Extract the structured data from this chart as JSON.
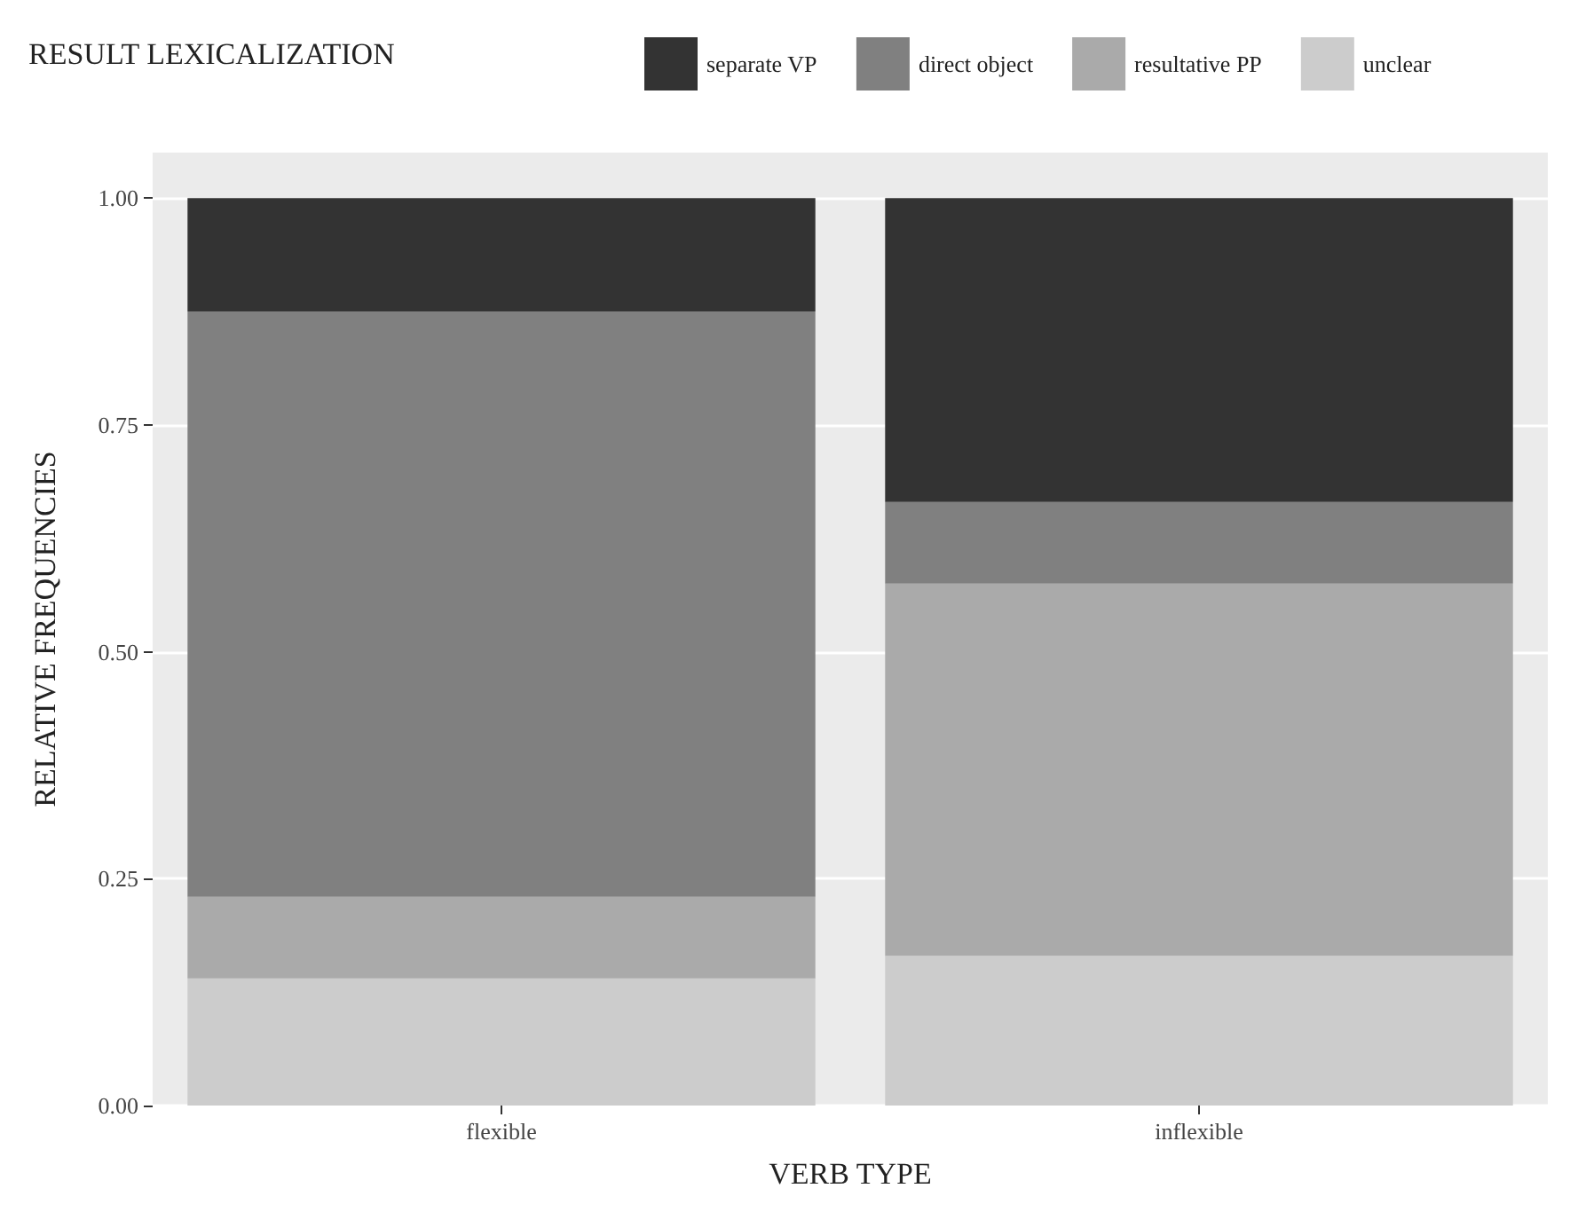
{
  "chart_data": {
    "type": "bar",
    "stacked": true,
    "xlabel": "VERB TYPE",
    "ylabel": "RELATIVE FREQUENCIES",
    "legend_title": "RESULT LEXICALIZATION",
    "legend": "top",
    "categories": [
      "flexible",
      "inflexible"
    ],
    "series": [
      {
        "name": "unclear",
        "color": "#cccccc",
        "values": [
          0.14,
          0.165
        ]
      },
      {
        "name": "resultative PP",
        "color": "#aaaaaa",
        "values": [
          0.09,
          0.41
        ]
      },
      {
        "name": "direct object",
        "color": "#808080",
        "values": [
          0.645,
          0.09
        ]
      },
      {
        "name": "separate VP",
        "color": "#333333",
        "values": [
          0.125,
          0.335
        ]
      }
    ],
    "ylim": [
      0,
      1.05
    ],
    "yticks": [
      {
        "value": 0,
        "label": "0.00"
      },
      {
        "value": 0.25,
        "label": "0.25"
      },
      {
        "value": 0.5,
        "label": "0.50"
      },
      {
        "value": 0.75,
        "label": "0.75"
      },
      {
        "value": 1,
        "label": "1.00"
      }
    ],
    "grid": "y"
  }
}
